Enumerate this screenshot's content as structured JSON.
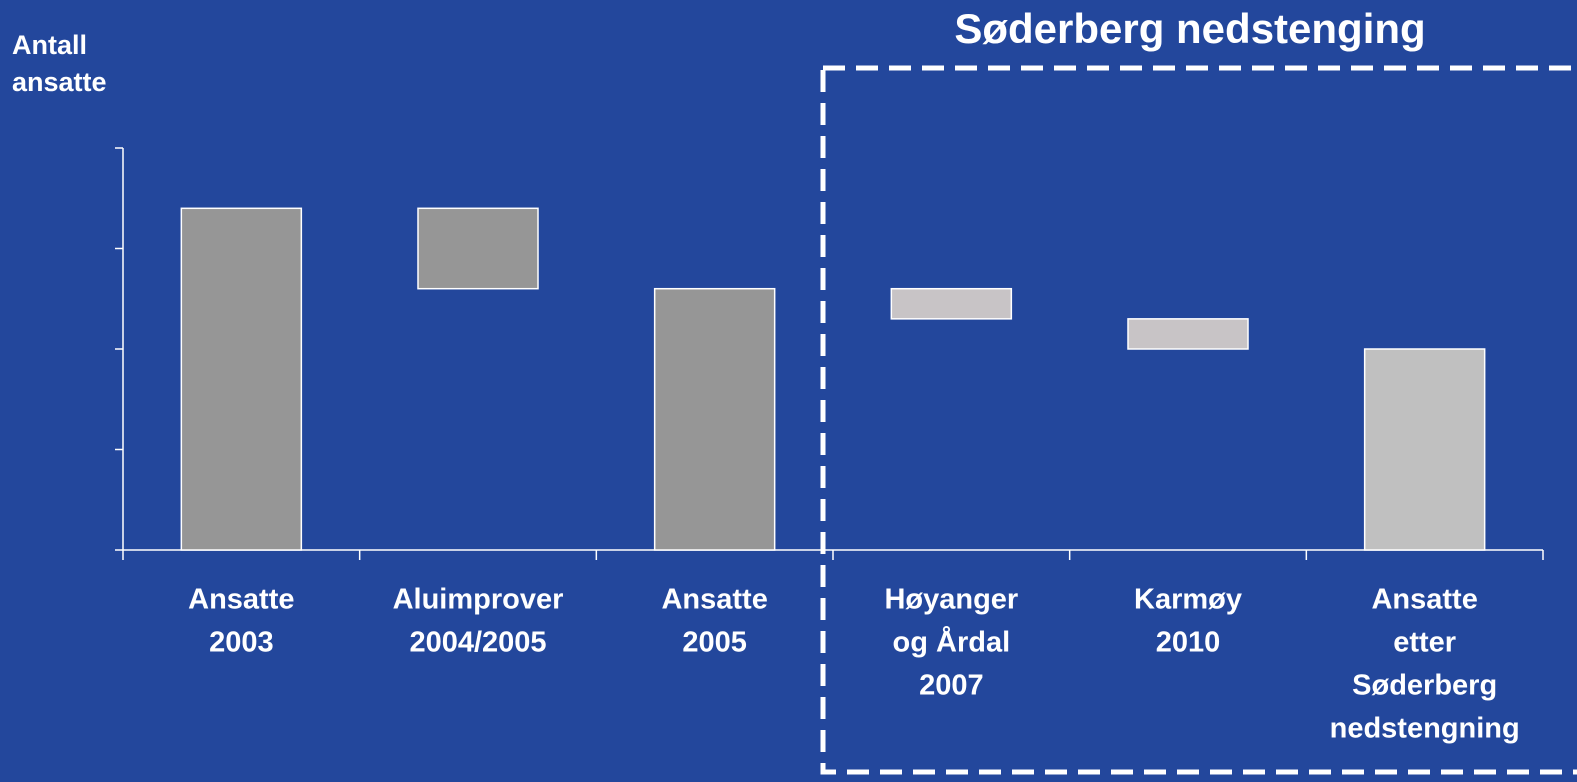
{
  "chart_data": {
    "type": "waterfall",
    "title": "Søderberg nedstenging",
    "y_label": [
      "Antall",
      "ansatte"
    ],
    "categories": [
      [
        "Ansatte",
        "2003"
      ],
      [
        "Aluimprover",
        "2004/2005"
      ],
      [
        "Ansatte",
        "2005"
      ],
      [
        "Høyanger",
        "og Årdal",
        "2007"
      ],
      [
        "Karmøy",
        "2010"
      ],
      [
        "Ansatte",
        "etter",
        "Søderberg",
        "nedstengning"
      ]
    ],
    "values": [
      3.4,
      -0.8,
      2.6,
      -0.3,
      -0.3,
      2.0
    ],
    "measure": [
      "total",
      "relative",
      "total",
      "relative",
      "relative",
      "total"
    ],
    "colors": [
      "#969696",
      "#969696",
      "#969696",
      "#c8c4c6",
      "#c8c4c6",
      "#c0c0c0"
    ],
    "ylim": [
      0,
      4
    ],
    "yticks": [
      0,
      1,
      2,
      3,
      4
    ]
  }
}
